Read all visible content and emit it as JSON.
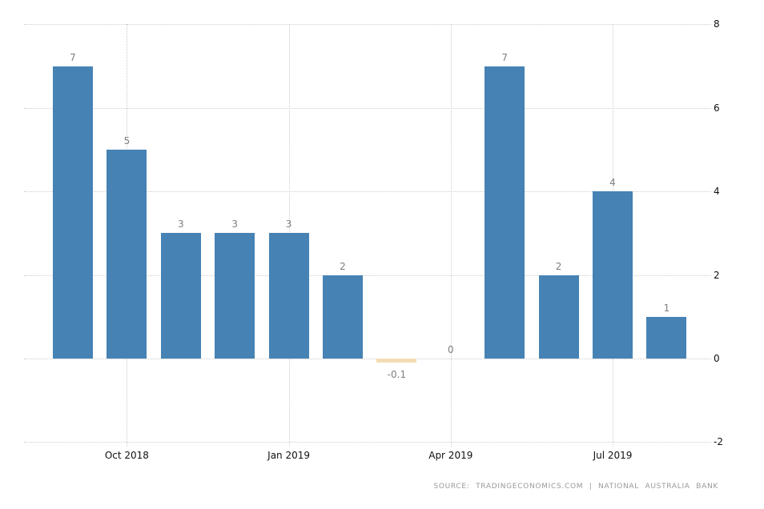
{
  "source": {
    "text": "SOURCE: TRADINGECONOMICS.COM | NATIONAL AUSTRALIA BANK"
  },
  "chart_data": {
    "type": "bar",
    "title": "",
    "xlabel": "",
    "ylabel": "",
    "values": [
      7,
      5,
      3,
      3,
      3,
      2,
      -0.1,
      0,
      7,
      2,
      4,
      1
    ],
    "bar_labels": [
      "7",
      "5",
      "3",
      "3",
      "3",
      "2",
      "-0.1",
      "0",
      "7",
      "2",
      "4",
      "1"
    ],
    "x_tick_labels": [
      {
        "label": "Oct 2018",
        "index": 1
      },
      {
        "label": "Jan 2019",
        "index": 4
      },
      {
        "label": "Apr 2019",
        "index": 7
      },
      {
        "label": "Jul 2019",
        "index": 10
      }
    ],
    "y_ticks": [
      8,
      6,
      4,
      2,
      0,
      -2
    ],
    "ylim": [
      -2,
      8
    ],
    "y_axis_side": "right",
    "grid": "dotted",
    "legend": "none",
    "colors": {
      "positive_bar": "#4682b4",
      "negative_bar": "#f2ddb3",
      "grid": "#cccccc",
      "value_label": "#7f7f7f",
      "axis_label": "#111111",
      "source_text": "#999999"
    }
  }
}
